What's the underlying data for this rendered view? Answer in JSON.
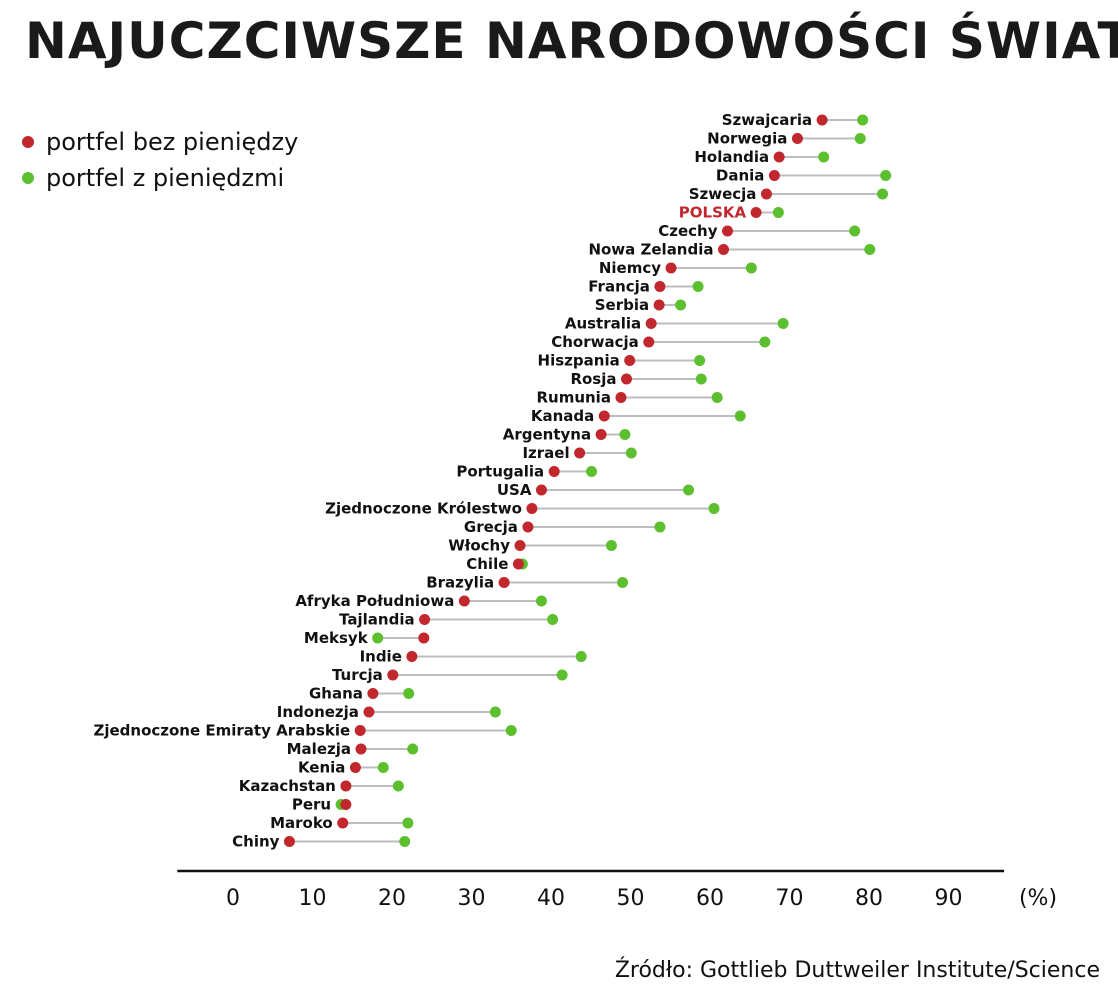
{
  "title": "NAJUCZCIWSZE NARODOWOŚCI ŚWIATA",
  "source": "Źródło: Gottlieb Duttweiler Institute/Science",
  "colors": {
    "without_money": "#c1272d",
    "with_money": "#5bbf2e",
    "connector": "#bdbdbd",
    "highlight": "#c1272d"
  },
  "chart_data": {
    "type": "dot",
    "unit": "(%)",
    "xlim": [
      -7,
      97
    ],
    "xticks": [
      0,
      10,
      20,
      30,
      40,
      50,
      60,
      70,
      80,
      90
    ],
    "highlight": "POLSKA",
    "series": [
      {
        "name": "portfel bez pieniędzy",
        "color": "#c1272d"
      },
      {
        "name": "portfel z pieniędzmi",
        "color": "#5bbf2e"
      }
    ],
    "countries": [
      "Szwajcaria",
      "Norwegia",
      "Holandia",
      "Dania",
      "Szwecja",
      "POLSKA",
      "Czechy",
      "Nowa Zelandia",
      "Niemcy",
      "Francja",
      "Serbia",
      "Australia",
      "Chorwacja",
      "Hiszpania",
      "Rosja",
      "Rumunia",
      "Kanada",
      "Argentyna",
      "Izrael",
      "Portugalia",
      "USA",
      "Zjednoczone Królestwo",
      "Grecja",
      "Włochy",
      "Chile",
      "Brazylia",
      "Afryka Południowa",
      "Tajlandia",
      "Meksyk",
      "Indie",
      "Turcja",
      "Ghana",
      "Indonezja",
      "Zjednoczone Emiraty Arabskie",
      "Malezja",
      "Kenia",
      "Kazachstan",
      "Peru",
      "Maroko",
      "Chiny"
    ],
    "without_money": [
      74.1,
      71.0,
      68.7,
      68.1,
      67.1,
      65.8,
      62.2,
      61.7,
      55.1,
      53.7,
      53.6,
      52.6,
      52.3,
      49.9,
      49.5,
      48.8,
      46.7,
      46.3,
      43.6,
      40.4,
      38.8,
      37.6,
      37.1,
      36.1,
      35.9,
      34.1,
      29.1,
      24.1,
      24.0,
      22.5,
      20.1,
      17.6,
      17.1,
      16.0,
      16.1,
      15.4,
      14.2,
      14.2,
      13.8,
      7.1
    ],
    "with_money": [
      79.2,
      78.9,
      74.3,
      82.1,
      81.7,
      68.6,
      78.2,
      80.1,
      65.2,
      58.5,
      56.3,
      69.2,
      66.9,
      58.7,
      58.9,
      60.9,
      63.8,
      49.3,
      50.1,
      45.1,
      57.3,
      60.5,
      53.7,
      47.6,
      36.4,
      49.0,
      38.8,
      40.2,
      18.2,
      43.8,
      41.4,
      22.1,
      33.0,
      35.0,
      22.6,
      18.9,
      20.8,
      13.6,
      22.0,
      21.6
    ]
  }
}
